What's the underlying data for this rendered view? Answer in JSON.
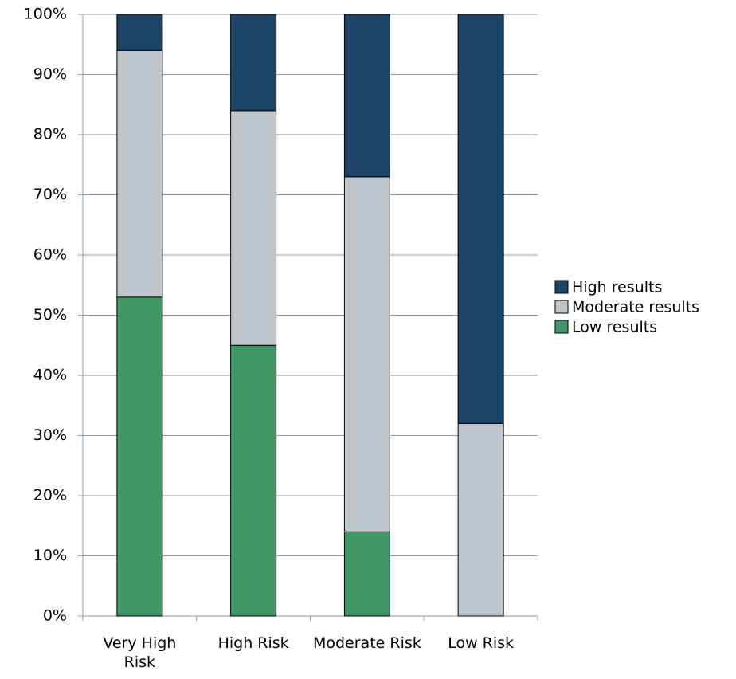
{
  "chart_data": {
    "type": "stacked_bar",
    "categories": [
      "Very High Risk",
      "High Risk",
      "Moderate Risk",
      "Low Risk"
    ],
    "series": [
      {
        "name": "High results",
        "color": "#1b4466",
        "values": [
          6,
          16,
          27,
          68
        ]
      },
      {
        "name": "Moderate results",
        "color": "#bfc6cb",
        "values": [
          41,
          39,
          59,
          32
        ]
      },
      {
        "name": "Low results",
        "color": "#3f9766",
        "values": [
          53,
          45,
          14,
          0
        ]
      }
    ],
    "ylim": [
      0,
      100
    ],
    "yticks": [
      {
        "value": 0,
        "label": "0%"
      },
      {
        "value": 10,
        "label": "10%"
      },
      {
        "value": 20,
        "label": "20%"
      },
      {
        "value": 30,
        "label": "30%"
      },
      {
        "value": 40,
        "label": "40%"
      },
      {
        "value": 50,
        "label": "50%"
      },
      {
        "value": 60,
        "label": "60%"
      },
      {
        "value": 70,
        "label": "70%"
      },
      {
        "value": 80,
        "label": "80%"
      },
      {
        "value": 90,
        "label": "90%"
      },
      {
        "value": 100,
        "label": "100%"
      }
    ],
    "grid": true,
    "legend": "right"
  }
}
